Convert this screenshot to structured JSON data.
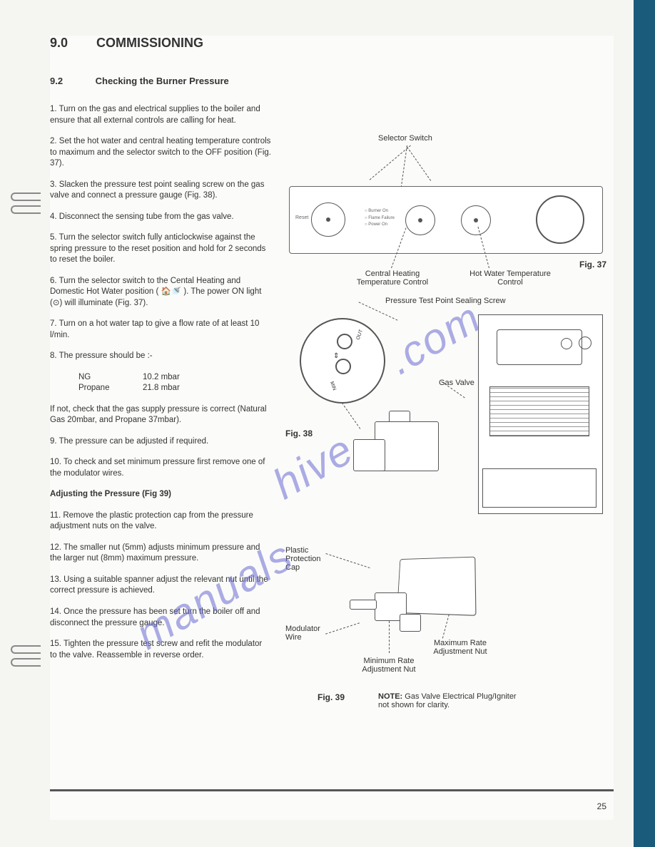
{
  "heading": {
    "number": "9.0",
    "title": "COMMISSIONING"
  },
  "subheading": {
    "number": "9.2",
    "title": "Checking the Burner Pressure"
  },
  "steps": {
    "s1": "1. Turn on the gas and electrical supplies to the boiler and ensure that all external controls are calling for heat.",
    "s2": "2. Set the hot water and central heating temperature controls to maximum and the selector switch to the OFF position (Fig. 37).",
    "s3": "3. Slacken the pressure test point sealing screw on the gas valve and connect a pressure gauge (Fig. 38).",
    "s4": "4. Disconnect the sensing tube from the gas valve.",
    "s5": "5. Turn the selector switch fully anticlockwise against the spring pressure to the reset position and hold for 2 seconds to reset the boiler.",
    "s6": "6. Turn the selector switch to the Cental Heating and Domestic Hot Water position ( 🏠🚿 ). The power ON light (⊙) will illuminate (Fig. 37).",
    "s7": "7. Turn on a hot water tap to give a flow rate of at least 10 l/min.",
    "s8": "8. The pressure should be :-",
    "s8note": "If not, check that the gas supply pressure is correct (Natural Gas 20mbar, and Propane 37mbar).",
    "s9": "9. The pressure can be adjusted if required.",
    "s10": "10. To check and set minimum pressure first remove one of the modulator wires.",
    "adjtitle": "Adjusting the Pressure (Fig 39)",
    "s11": "11. Remove the plastic protection cap from the pressure adjustment nuts on the valve.",
    "s12": "12. The smaller nut (5mm) adjusts minimum pressure and the larger nut (8mm) maximum pressure.",
    "s13": "13. Using a suitable spanner adjust the relevant nut until the correct pressure is achieved.",
    "s14": "14. Once the pressure has been set turn the boiler off and disconnect the pressure gauge.",
    "s15": "15. Tighten the pressure test screw and refit the modulator to the valve. Reassemble in reverse order."
  },
  "pressure_table": {
    "rows": [
      {
        "gas": "NG",
        "value": "10.2 mbar"
      },
      {
        "gas": "Propane",
        "value": "21.8 mbar"
      }
    ]
  },
  "fig37": {
    "selector_switch": "Selector Switch",
    "caption": "Fig. 37",
    "ch_label": "Central Heating Temperature Control",
    "hw_label": "Hot Water Temperature Control",
    "reset": "Reset",
    "leds": [
      "Burner On",
      "Flame Failure",
      "Power On"
    ]
  },
  "fig38": {
    "ptp_label": "Pressure Test Point Sealing Screw",
    "gas_valve": "Gas Valve",
    "caption": "Fig. 38",
    "out": "OUT",
    "min": "MIN"
  },
  "fig39": {
    "cap": "Plastic Protection Cap",
    "modulator": "Modulator Wire",
    "minrate": "Minimum Rate Adjustment Nut",
    "maxrate": "Maximum Rate Adjustment Nut",
    "caption": "Fig. 39",
    "note_bold": "NOTE:",
    "note": " Gas Valve Electrical Plug/Igniter not shown for clarity."
  },
  "watermark": {
    "t1": ".com",
    "t2": "hive",
    "t3": "manuals"
  },
  "page_number": "25",
  "colors": {
    "page_bg": "#fbfbf9",
    "body_bg": "#f5f5f2",
    "right_bar": "#1a5a7a",
    "text": "#333",
    "line": "#555",
    "watermark": "#6a6ad4"
  }
}
